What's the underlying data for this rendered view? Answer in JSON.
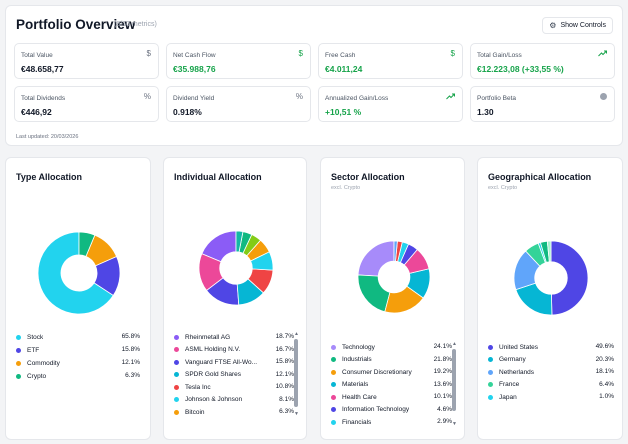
{
  "header": {
    "title": "Portfolio Overview",
    "subtitle": "(8/10 metrics)",
    "show_controls": "Show Controls",
    "last_updated": "Last updated: 20/03/2026"
  },
  "metrics": [
    {
      "label": "Total Value",
      "value": "€48.658,77",
      "icon": "dollar-icon",
      "positive": false
    },
    {
      "label": "Net Cash Flow",
      "value": "€35.988,76",
      "icon": "dollar-icon",
      "positive": true
    },
    {
      "label": "Free Cash",
      "value": "€4.011,24",
      "icon": "dollar-icon",
      "positive": true
    },
    {
      "label": "Total Gain/Loss",
      "value": "€12.223,08 (+33,55 %)",
      "icon": "trending-up-icon",
      "positive": true
    },
    {
      "label": "Total Dividends",
      "value": "€446,92",
      "icon": "percent-icon",
      "positive": false
    },
    {
      "label": "Dividend Yield",
      "value": "0.918%",
      "icon": "percent-icon",
      "positive": false
    },
    {
      "label": "Annualized Gain/Loss",
      "value": "+10,51 %",
      "icon": "trending-up-icon",
      "positive": true
    },
    {
      "label": "Portfolio Beta",
      "value": "1.30",
      "icon": "circle-icon",
      "positive": false
    }
  ],
  "colors": {
    "positive": "#16a34a",
    "border": "#e5e7eb",
    "background": "#f3f4f6"
  },
  "cards": [
    {
      "title": "Type Allocation",
      "subtitle": "",
      "items": [
        {
          "name": "Stock",
          "value": "65.8%",
          "color": "#22d3ee"
        },
        {
          "name": "ETF",
          "value": "15.8%",
          "color": "#4f46e5"
        },
        {
          "name": "Commodity",
          "value": "12.1%",
          "color": "#f59e0b"
        },
        {
          "name": "Crypto",
          "value": "6.3%",
          "color": "#10b981"
        }
      ]
    },
    {
      "title": "Individual Allocation",
      "subtitle": "",
      "items": [
        {
          "name": "Rheinmetall AG",
          "value": "18.7%",
          "color": "#8b5cf6"
        },
        {
          "name": "ASML Holding N.V.",
          "value": "16.7%",
          "color": "#ec4899"
        },
        {
          "name": "Vanguard FTSE All-Wo...",
          "value": "15.8%",
          "color": "#4f46e5"
        },
        {
          "name": "SPDR Gold Shares",
          "value": "12.1%",
          "color": "#06b6d4"
        },
        {
          "name": "Tesla Inc",
          "value": "10.8%",
          "color": "#ef4444"
        },
        {
          "name": "Johnson & Johnson",
          "value": "8.1%",
          "color": "#22d3ee"
        },
        {
          "name": "Bitcoin",
          "value": "6.3%",
          "color": "#f59e0b"
        }
      ]
    },
    {
      "title": "Sector Allocation",
      "subtitle": "excl. Crypto",
      "items": [
        {
          "name": "Technology",
          "value": "24.1%",
          "color": "#a78bfa"
        },
        {
          "name": "Industrials",
          "value": "21.8%",
          "color": "#10b981"
        },
        {
          "name": "Consumer Discretionary",
          "value": "19.2%",
          "color": "#f59e0b"
        },
        {
          "name": "Materials",
          "value": "13.6%",
          "color": "#06b6d4"
        },
        {
          "name": "Health Care",
          "value": "10.1%",
          "color": "#ec4899"
        },
        {
          "name": "Information Technology",
          "value": "4.6%",
          "color": "#4f46e5"
        },
        {
          "name": "Financials",
          "value": "2.9%",
          "color": "#22d3ee"
        }
      ]
    },
    {
      "title": "Geographical Allocation",
      "subtitle": "excl. Crypto",
      "items": [
        {
          "name": "United States",
          "value": "49.6%",
          "color": "#4f46e5"
        },
        {
          "name": "Germany",
          "value": "20.3%",
          "color": "#06b6d4"
        },
        {
          "name": "Netherlands",
          "value": "18.1%",
          "color": "#60a5fa"
        },
        {
          "name": "France",
          "value": "6.4%",
          "color": "#34d399"
        },
        {
          "name": "Japan",
          "value": "1.0%",
          "color": "#22d3ee"
        }
      ]
    }
  ],
  "chart_data": [
    {
      "type": "pie",
      "title": "Type Allocation",
      "categories": [
        "Stock",
        "ETF",
        "Commodity",
        "Crypto"
      ],
      "values": [
        65.8,
        15.8,
        12.1,
        6.3
      ],
      "colors": [
        "#22d3ee",
        "#4f46e5",
        "#f59e0b",
        "#10b981"
      ],
      "start": "top",
      "direction": "counterclockwise",
      "donut": true,
      "legend": "bottom"
    },
    {
      "type": "pie",
      "title": "Individual Allocation",
      "categories": [
        "Rheinmetall AG",
        "ASML Holding N.V.",
        "Vanguard FTSE All-Wo...",
        "SPDR Gold Shares",
        "Tesla Inc",
        "Johnson & Johnson",
        "Bitcoin",
        "",
        "",
        ""
      ],
      "values": [
        18.7,
        16.7,
        15.8,
        12.1,
        10.8,
        8.1,
        6.3,
        4.5,
        4.0,
        3.0
      ],
      "colors": [
        "#8b5cf6",
        "#ec4899",
        "#4f46e5",
        "#06b6d4",
        "#ef4444",
        "#22d3ee",
        "#f59e0b",
        "#84cc16",
        "#10b981",
        "#14b8a6"
      ],
      "start": "top",
      "direction": "counterclockwise",
      "donut": true,
      "legend": "bottom"
    },
    {
      "type": "pie",
      "title": "Sector Allocation",
      "subtitle": "excl. Crypto",
      "categories": [
        "Technology",
        "Industrials",
        "Consumer Discretionary",
        "Materials",
        "Health Care",
        "Information Technology",
        "Financials",
        "",
        ""
      ],
      "values": [
        24.1,
        21.8,
        19.2,
        13.6,
        10.1,
        4.6,
        2.9,
        2.2,
        1.5
      ],
      "colors": [
        "#a78bfa",
        "#10b981",
        "#f59e0b",
        "#06b6d4",
        "#ec4899",
        "#4f46e5",
        "#22d3ee",
        "#ef4444",
        "#60a5fa"
      ],
      "start": "top",
      "direction": "counterclockwise",
      "donut": true,
      "legend": "bottom"
    },
    {
      "type": "pie",
      "title": "Geographical Allocation",
      "subtitle": "excl. Crypto",
      "categories": [
        "United States",
        "Germany",
        "Netherlands",
        "France",
        "Japan",
        "",
        ""
      ],
      "values": [
        49.6,
        20.3,
        18.1,
        6.4,
        1.0,
        3.0,
        1.6
      ],
      "colors": [
        "#4f46e5",
        "#06b6d4",
        "#60a5fa",
        "#34d399",
        "#22d3ee",
        "#10b981",
        "#a7f3d0"
      ],
      "start": "top",
      "direction": "clockwise",
      "donut": true,
      "legend": "bottom"
    }
  ]
}
